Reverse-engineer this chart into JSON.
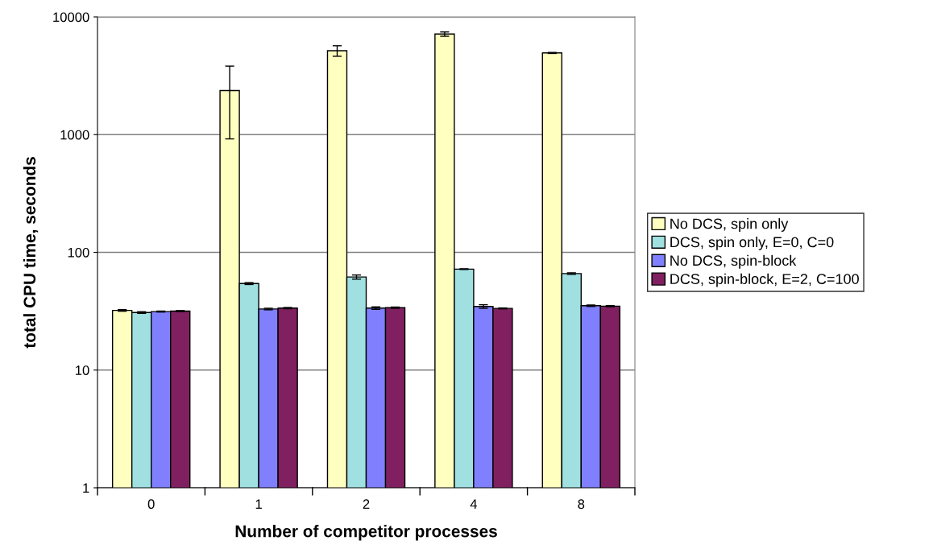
{
  "chart_data": {
    "type": "bar",
    "xlabel": "Number of competitor processes",
    "ylabel": "total CPU time, seconds",
    "categories": [
      "0",
      "1",
      "2",
      "4",
      "8"
    ],
    "series": [
      {
        "name": "No DCS, spin only",
        "color": "#ffffc0",
        "values": [
          32.1,
          2370,
          5160,
          7150,
          4940
        ],
        "errors": [
          0.5,
          1450,
          530,
          300,
          50
        ]
      },
      {
        "name": "DCS, spin only, E=0, C=0",
        "color": "#a0e0e0",
        "values": [
          30.8,
          54.3,
          61.7,
          72,
          66
        ],
        "errors": [
          0.5,
          1,
          2.5,
          0.5,
          1
        ]
      },
      {
        "name": "No DCS, spin-block",
        "color": "#8080ff",
        "values": [
          31.4,
          33,
          33.6,
          34.7,
          35.2
        ],
        "errors": [
          0.3,
          0.5,
          0.8,
          1.2,
          0.5
        ]
      },
      {
        "name": "DCS, spin-block, E=2, C=100",
        "color": "#802060",
        "values": [
          31.7,
          33.6,
          33.9,
          33.4,
          34.9
        ],
        "errors": [
          0.3,
          0.4,
          0.4,
          0.3,
          0.4
        ]
      }
    ],
    "log": "y",
    "ylim": [
      1,
      10000
    ],
    "yticks": [
      1,
      10,
      100,
      1000,
      10000
    ],
    "grid": "y",
    "legend": "right"
  }
}
